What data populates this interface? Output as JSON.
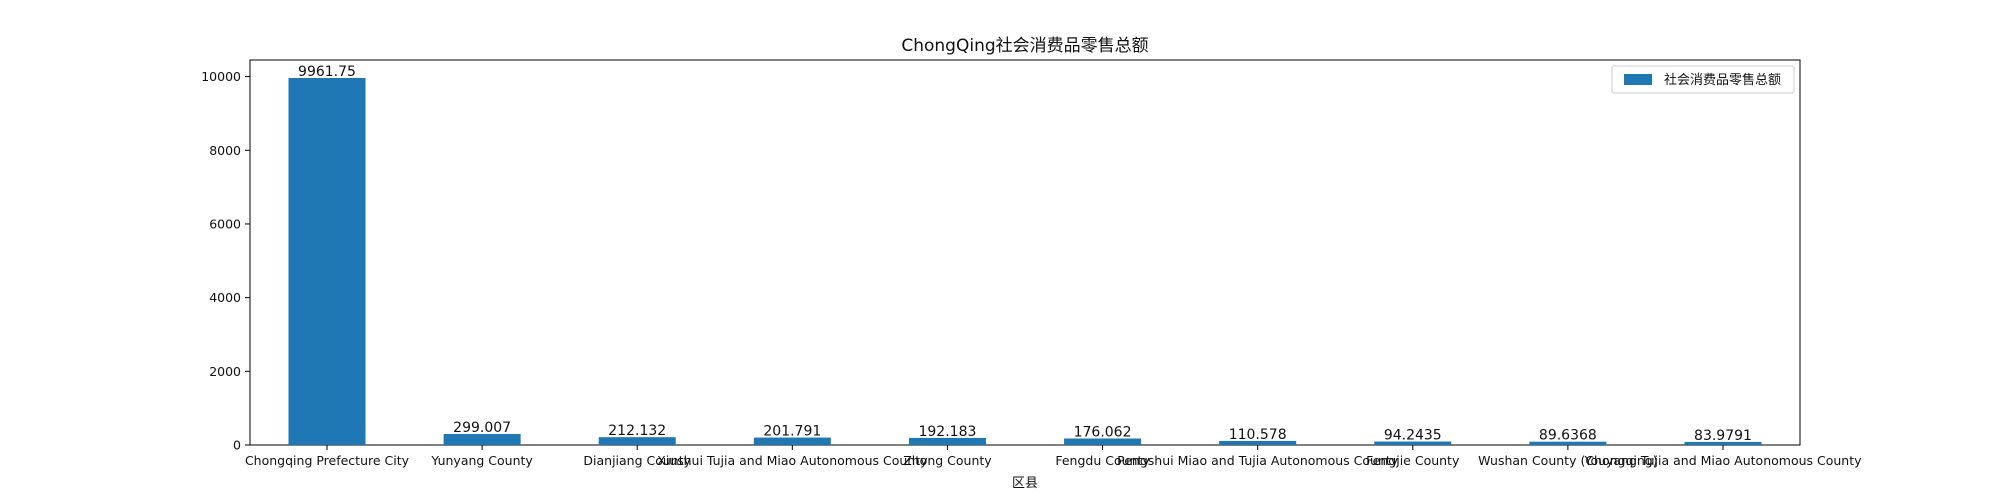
{
  "chart_data": {
    "type": "bar",
    "title": "ChongQing社会消费品零售总额",
    "xlabel": "区县",
    "ylabel": "",
    "ylim": [
      0,
      10450
    ],
    "yticks": [
      0,
      2000,
      4000,
      6000,
      8000,
      10000
    ],
    "grid": false,
    "legend_position": "top-right",
    "categories": [
      "Chongqing Prefecture City",
      "Yunyang County",
      "Dianjiang County",
      "Xiushui Tujia and Miao Autonomous County",
      "Zhong County",
      "Fengdu County",
      "Pengshui Miao and Tujia Autonomous County",
      "Fengjie County",
      "Wushan County (Chongqing)",
      "Youyang Tujia and Miao Autonomous County"
    ],
    "series": [
      {
        "name": "社会消费品零售总额",
        "color": "#1f77b4",
        "values": [
          9961.75,
          299.007,
          212.132,
          201.791,
          192.183,
          176.062,
          110.578,
          94.2435,
          89.6368,
          83.9791
        ],
        "labels": [
          "9961.75",
          "299.007",
          "212.132",
          "201.791",
          "192.183",
          "176.062",
          "110.578",
          "94.2435",
          "89.6368",
          "83.9791"
        ]
      }
    ]
  }
}
